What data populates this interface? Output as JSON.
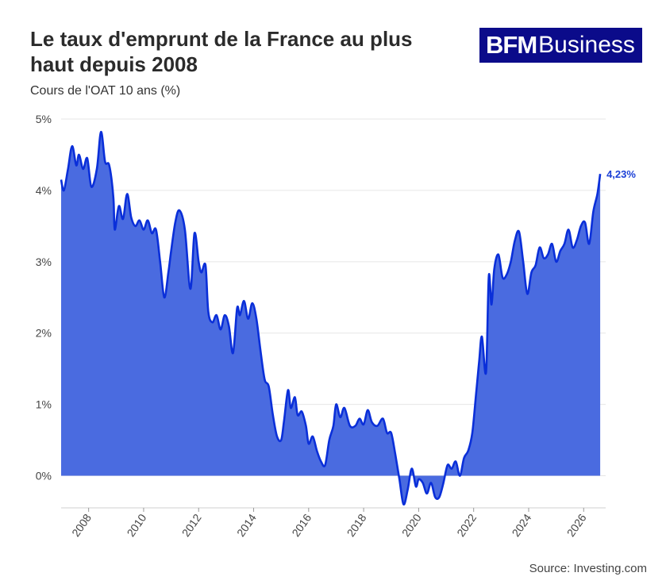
{
  "header": {
    "title": "Le taux d'emprunt de la France au plus haut depuis 2008",
    "subtitle": "Cours de l'OAT 10 ans (%)"
  },
  "logo": {
    "brand": "BFM",
    "suffix": "Business"
  },
  "source": "Source: Investing.com",
  "colors": {
    "line": "#0a2fd9",
    "area": "#4a6be0",
    "grid": "#e6e6e6",
    "label": "#1a3fd6"
  },
  "chart_data": {
    "type": "area",
    "xlim": [
      2007.0,
      2026.8
    ],
    "ylim": [
      -0.45,
      5.0
    ],
    "y_ticks": [
      0,
      1,
      2,
      3,
      4,
      5
    ],
    "y_tick_labels": [
      "0%",
      "1%",
      "2%",
      "3%",
      "4%",
      "5%"
    ],
    "x_ticks": [
      2008,
      2010,
      2012,
      2014,
      2016,
      2018,
      2020,
      2022,
      2024,
      2026
    ],
    "x_tick_labels": [
      "2008",
      "2010",
      "2012",
      "2014",
      "2016",
      "2018",
      "2020",
      "2022",
      "2024",
      "2026"
    ],
    "end_label": "4,23%",
    "grid": true,
    "legend": "none",
    "x": [
      2007.0,
      2007.1,
      2007.25,
      2007.4,
      2007.55,
      2007.65,
      2007.8,
      2007.95,
      2008.1,
      2008.3,
      2008.45,
      2008.6,
      2008.75,
      2008.9,
      2008.95,
      2009.1,
      2009.25,
      2009.4,
      2009.55,
      2009.7,
      2009.85,
      2010.0,
      2010.15,
      2010.3,
      2010.45,
      2010.6,
      2010.75,
      2010.9,
      2011.0,
      2011.15,
      2011.3,
      2011.5,
      2011.7,
      2011.85,
      2012.0,
      2012.1,
      2012.25,
      2012.35,
      2012.5,
      2012.65,
      2012.8,
      2012.95,
      2013.1,
      2013.25,
      2013.4,
      2013.5,
      2013.65,
      2013.8,
      2013.95,
      2014.1,
      2014.25,
      2014.4,
      2014.55,
      2014.7,
      2014.85,
      2015.0,
      2015.1,
      2015.25,
      2015.35,
      2015.5,
      2015.6,
      2015.75,
      2015.9,
      2016.0,
      2016.15,
      2016.3,
      2016.45,
      2016.6,
      2016.75,
      2016.9,
      2017.0,
      2017.15,
      2017.3,
      2017.5,
      2017.7,
      2017.85,
      2018.0,
      2018.15,
      2018.3,
      2018.5,
      2018.7,
      2018.85,
      2019.0,
      2019.15,
      2019.3,
      2019.45,
      2019.6,
      2019.75,
      2019.9,
      2020.0,
      2020.15,
      2020.3,
      2020.45,
      2020.6,
      2020.75,
      2020.9,
      2021.05,
      2021.2,
      2021.35,
      2021.5,
      2021.65,
      2021.8,
      2021.95,
      2022.1,
      2022.2,
      2022.3,
      2022.45,
      2022.55,
      2022.65,
      2022.75,
      2022.9,
      2023.05,
      2023.2,
      2023.35,
      2023.5,
      2023.65,
      2023.8,
      2023.95,
      2024.1,
      2024.25,
      2024.4,
      2024.55,
      2024.7,
      2024.85,
      2025.0,
      2025.15,
      2025.3,
      2025.45,
      2025.6,
      2025.75,
      2025.9,
      2026.05,
      2026.2,
      2026.35,
      2026.5,
      2026.6
    ],
    "values": [
      4.15,
      4.0,
      4.3,
      4.62,
      4.35,
      4.5,
      4.3,
      4.45,
      4.05,
      4.3,
      4.82,
      4.4,
      4.35,
      3.9,
      3.45,
      3.78,
      3.6,
      3.95,
      3.62,
      3.5,
      3.58,
      3.45,
      3.58,
      3.4,
      3.45,
      3.0,
      2.5,
      2.85,
      3.15,
      3.55,
      3.72,
      3.45,
      2.62,
      3.4,
      3.0,
      2.85,
      2.95,
      2.3,
      2.15,
      2.25,
      2.05,
      2.25,
      2.1,
      1.72,
      2.35,
      2.25,
      2.45,
      2.2,
      2.42,
      2.2,
      1.75,
      1.35,
      1.25,
      0.85,
      0.55,
      0.5,
      0.75,
      1.2,
      0.95,
      1.1,
      0.85,
      0.9,
      0.7,
      0.45,
      0.55,
      0.35,
      0.2,
      0.15,
      0.5,
      0.7,
      1.0,
      0.82,
      0.95,
      0.7,
      0.7,
      0.8,
      0.72,
      0.92,
      0.75,
      0.7,
      0.8,
      0.6,
      0.6,
      0.3,
      -0.05,
      -0.4,
      -0.2,
      0.1,
      -0.15,
      -0.05,
      -0.1,
      -0.25,
      -0.1,
      -0.3,
      -0.3,
      -0.1,
      0.15,
      0.1,
      0.2,
      0.0,
      0.25,
      0.35,
      0.6,
      1.2,
      1.6,
      1.95,
      1.45,
      2.8,
      2.4,
      2.9,
      3.1,
      2.78,
      2.82,
      3.0,
      3.3,
      3.42,
      3.0,
      2.55,
      2.85,
      2.95,
      3.2,
      3.05,
      3.1,
      3.25,
      3.0,
      3.15,
      3.25,
      3.45,
      3.2,
      3.3,
      3.5,
      3.55,
      3.25,
      3.7,
      3.95,
      4.23
    ]
  }
}
